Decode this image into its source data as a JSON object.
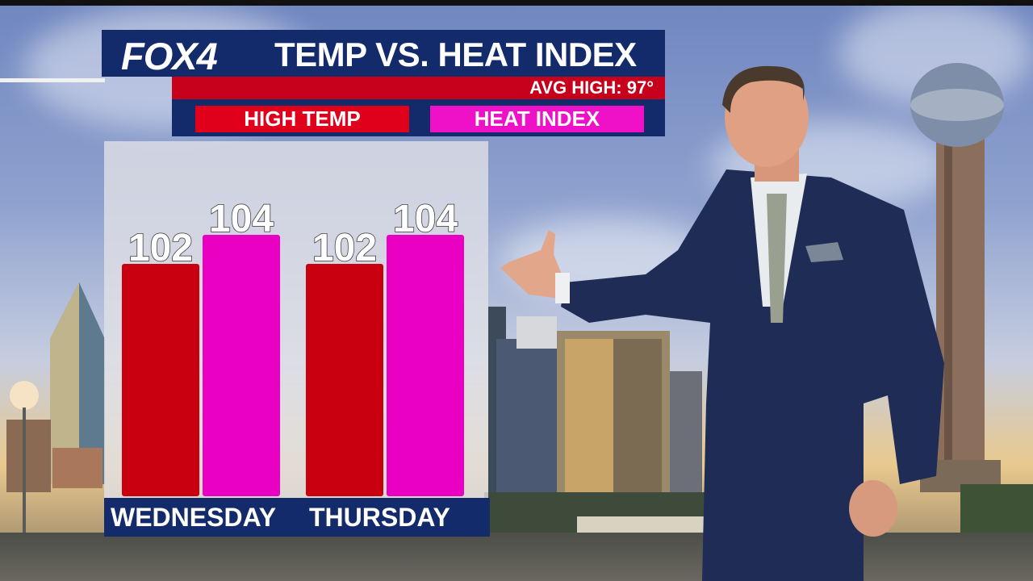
{
  "header": {
    "logo": "FOX4",
    "title": "TEMP VS. HEAT INDEX",
    "avg_high": "AVG HIGH: 97°"
  },
  "legend": [
    {
      "label": "HIGH TEMP",
      "color": "#e0001c"
    },
    {
      "label": "HEAT INDEX",
      "color": "#ee11c8"
    }
  ],
  "chart_data": {
    "type": "bar",
    "title": "TEMP VS. HEAT INDEX",
    "categories": [
      "WEDNESDAY",
      "THURSDAY"
    ],
    "series": [
      {
        "name": "HIGH TEMP",
        "values": [
          102,
          102
        ],
        "color": "#c8000f"
      },
      {
        "name": "HEAT INDEX",
        "values": [
          104,
          104
        ],
        "color": "#ea00c2"
      }
    ]
  },
  "colors": {
    "navy": "#132a6b",
    "red": "#c7001b",
    "magenta": "#ea00c2"
  }
}
